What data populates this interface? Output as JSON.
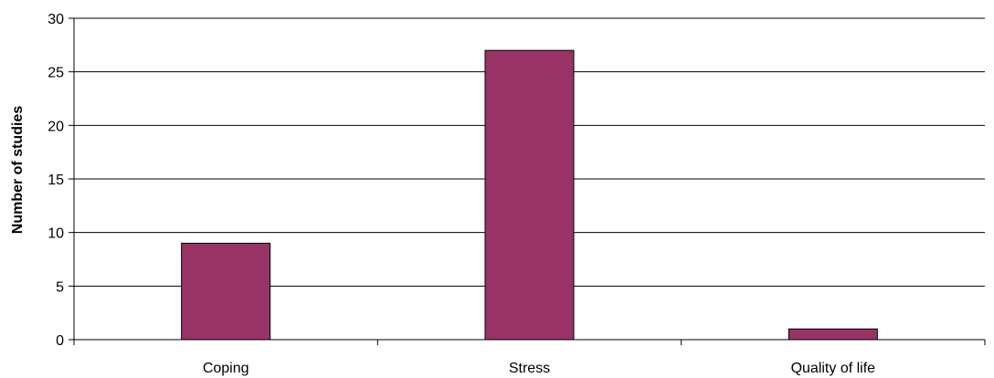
{
  "chart_data": {
    "type": "bar",
    "title": "",
    "xlabel": "",
    "ylabel": "Number of studies",
    "categories": [
      "Coping",
      "Stress",
      "Quality of life"
    ],
    "values": [
      9,
      27,
      1
    ],
    "ylim": [
      0,
      30
    ],
    "yticks": [
      0,
      5,
      10,
      15,
      20,
      25,
      30
    ],
    "grid": true,
    "legend": "none",
    "bar_color": "#993366",
    "bar_edge_color": "#000000",
    "grid_color": "#000000"
  }
}
